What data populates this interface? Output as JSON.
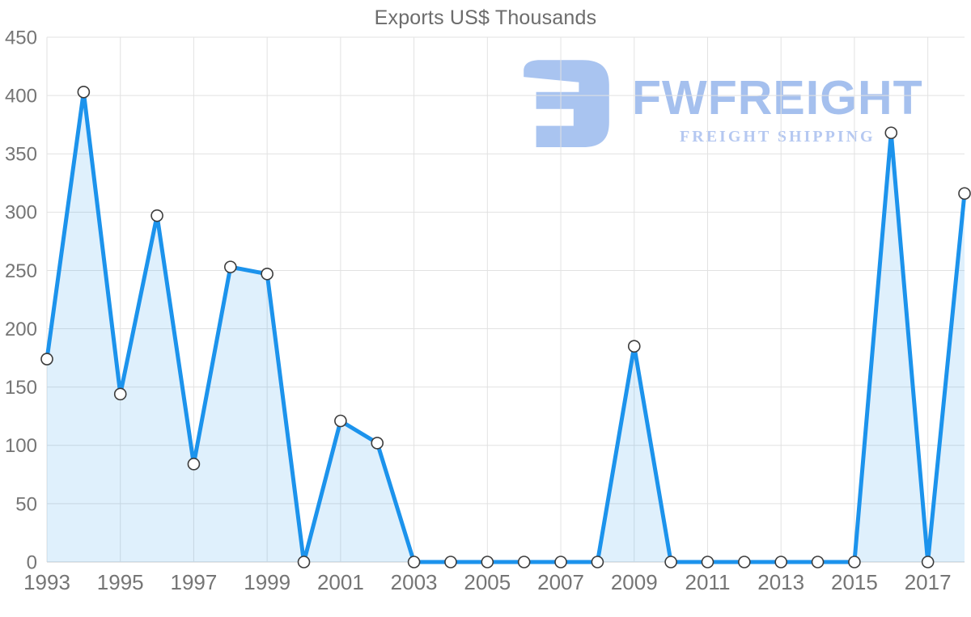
{
  "title": "Exports US$ Thousands",
  "watermark": {
    "brand": "FWFREIGHT",
    "tagline": "FREIGHT SHIPPING",
    "icon_color": "#a9c4f0",
    "brand_color": "#a5c0ee",
    "tagline_color": "#b5c8f1"
  },
  "chart_data": {
    "type": "area",
    "title": "Exports US$ Thousands",
    "xlabel": "",
    "ylabel": "",
    "x": [
      1993,
      1994,
      1995,
      1996,
      1997,
      1998,
      1999,
      2000,
      2001,
      2002,
      2003,
      2004,
      2005,
      2006,
      2007,
      2008,
      2009,
      2010,
      2011,
      2012,
      2013,
      2014,
      2015,
      2016,
      2017,
      2018
    ],
    "values": [
      174,
      403,
      144,
      297,
      84,
      253,
      247,
      0,
      121,
      102,
      0,
      0,
      0,
      0,
      0,
      0,
      185,
      0,
      0,
      0,
      0,
      0,
      0,
      368,
      0,
      316
    ],
    "xticks": [
      1993,
      1995,
      1997,
      1999,
      2001,
      2003,
      2005,
      2007,
      2009,
      2011,
      2013,
      2015,
      2017
    ],
    "ylim": [
      0,
      450
    ],
    "ytick_step": 50,
    "grid": true,
    "legend_position": "none",
    "colors": {
      "line": "#1c93ec",
      "fill": "rgba(30,147,236,0.14)",
      "marker_fill": "#ffffff",
      "marker_stroke": "#3c3c3c",
      "grid": "#e2e2e2",
      "baseline": "#cccccc",
      "axis_label": "#757575",
      "title": "#6c6c6c"
    }
  }
}
